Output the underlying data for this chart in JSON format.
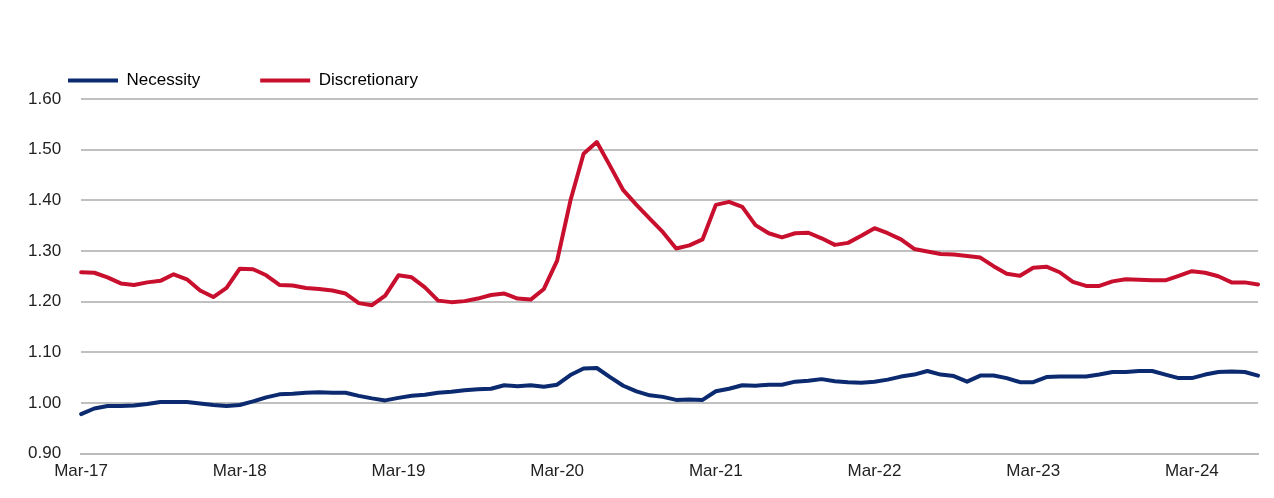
{
  "chart_data": {
    "type": "line",
    "categories": [
      "Mar-17",
      null,
      null,
      null,
      null,
      null,
      null,
      null,
      null,
      null,
      null,
      null,
      "Mar-18",
      null,
      null,
      null,
      null,
      null,
      null,
      null,
      null,
      null,
      null,
      null,
      "Mar-19",
      null,
      null,
      null,
      null,
      null,
      null,
      null,
      null,
      null,
      null,
      null,
      "Mar-20",
      null,
      null,
      null,
      null,
      null,
      null,
      null,
      null,
      null,
      null,
      null,
      "Mar-21",
      null,
      null,
      null,
      null,
      null,
      null,
      null,
      null,
      null,
      null,
      null,
      "Mar-22",
      null,
      null,
      null,
      null,
      null,
      null,
      null,
      null,
      null,
      null,
      null,
      "Mar-23",
      null,
      null,
      null,
      null,
      null,
      null,
      null,
      null,
      null,
      null,
      null,
      "Mar-24",
      null,
      null,
      null,
      null,
      null
    ],
    "series": [
      {
        "name": "Necessity",
        "color": "#0b2a6f",
        "values": [
          0.978,
          0.989,
          0.994,
          0.994,
          0.995,
          0.998,
          1.002,
          1.002,
          1.002,
          0.999,
          0.996,
          0.994,
          0.996,
          1.003,
          1.011,
          1.017,
          1.018,
          1.02,
          1.021,
          1.02,
          1.02,
          1.014,
          1.009,
          1.005,
          1.01,
          1.014,
          1.016,
          1.02,
          1.022,
          1.025,
          1.027,
          1.028,
          1.035,
          1.033,
          1.035,
          1.032,
          1.036,
          1.055,
          1.068,
          1.069,
          1.051,
          1.034,
          1.023,
          1.015,
          1.012,
          1.006,
          1.007,
          1.006,
          1.023,
          1.028,
          1.035,
          1.034,
          1.036,
          1.036,
          1.042,
          1.044,
          1.047,
          1.043,
          1.041,
          1.04,
          1.042,
          1.046,
          1.052,
          1.056,
          1.063,
          1.056,
          1.053,
          1.042,
          1.054,
          1.054,
          1.049,
          1.041,
          1.041,
          1.051,
          1.052,
          1.052,
          1.052,
          1.056,
          1.061,
          1.061,
          1.063,
          1.063,
          1.056,
          1.049,
          1.049,
          1.056,
          1.061,
          1.062,
          1.061,
          1.054
        ]
      },
      {
        "name": "Discretionary",
        "color": "#c8102e",
        "values": [
          1.258,
          1.257,
          1.248,
          1.236,
          1.233,
          1.238,
          1.241,
          1.254,
          1.244,
          1.222,
          1.209,
          1.227,
          1.265,
          1.264,
          1.252,
          1.233,
          1.232,
          1.227,
          1.225,
          1.222,
          1.216,
          1.197,
          1.193,
          1.212,
          1.252,
          1.248,
          1.228,
          1.202,
          1.199,
          1.201,
          1.206,
          1.213,
          1.216,
          1.206,
          1.204,
          1.225,
          1.281,
          1.399,
          1.492,
          1.515,
          1.468,
          1.42,
          1.391,
          1.364,
          1.337,
          1.305,
          1.311,
          1.323,
          1.391,
          1.397,
          1.387,
          1.351,
          1.335,
          1.327,
          1.335,
          1.336,
          1.325,
          1.312,
          1.316,
          1.33,
          1.345,
          1.335,
          1.323,
          1.304,
          1.299,
          1.294,
          1.293,
          1.29,
          1.287,
          1.27,
          1.255,
          1.251,
          1.267,
          1.269,
          1.258,
          1.239,
          1.231,
          1.231,
          1.24,
          1.244,
          1.243,
          1.242,
          1.242,
          1.251,
          1.26,
          1.257,
          1.25,
          1.238,
          1.238,
          1.234
        ]
      }
    ],
    "ylim": [
      0.9,
      1.6
    ],
    "yticks": [
      {
        "value": 0.9,
        "label": "0.90"
      },
      {
        "value": 1.0,
        "label": "1.00"
      },
      {
        "value": 1.1,
        "label": "1.10"
      },
      {
        "value": 1.2,
        "label": "1.20"
      },
      {
        "value": 1.3,
        "label": "1.30"
      },
      {
        "value": 1.4,
        "label": "1.40"
      },
      {
        "value": 1.5,
        "label": "1.50"
      },
      {
        "value": 1.6,
        "label": "1.60"
      }
    ],
    "grid": "y",
    "legend": "top left",
    "marker": "none",
    "line_style": "solid"
  }
}
